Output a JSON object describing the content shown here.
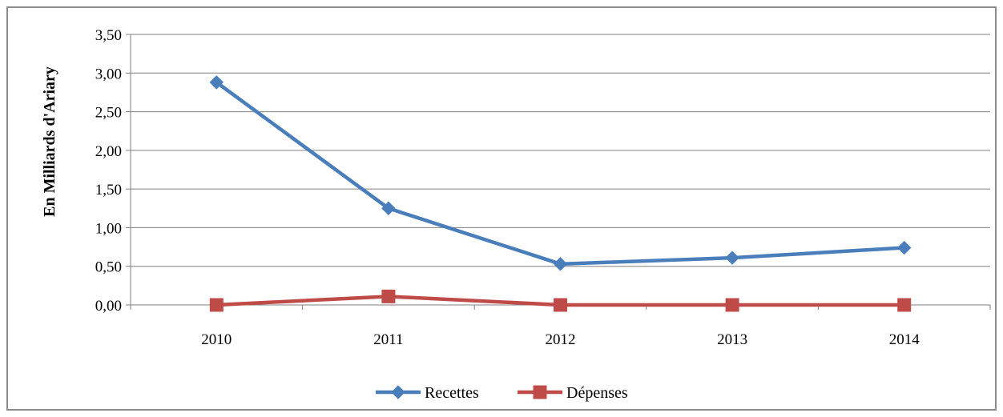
{
  "chart_data": {
    "type": "line",
    "categories": [
      "2010",
      "2011",
      "2012",
      "2013",
      "2014"
    ],
    "series": [
      {
        "name": "Recettes",
        "values": [
          2.88,
          1.25,
          0.53,
          0.61,
          0.74
        ],
        "color": "#4a7ebb",
        "marker": "diamond"
      },
      {
        "name": "Dépenses",
        "values": [
          0.0,
          0.11,
          0.0,
          0.0,
          0.0
        ],
        "color": "#be4b48",
        "marker": "square"
      }
    ],
    "ylabel": "En Milliards d'Ariary",
    "xlabel": "",
    "title": "",
    "ylim": [
      0,
      3.5
    ],
    "yticks": [
      "0,00",
      "0,50",
      "1,00",
      "1,50",
      "2,00",
      "2,50",
      "3,00",
      "3,50"
    ],
    "grid": "horizontal",
    "legend": "bottom-center"
  }
}
